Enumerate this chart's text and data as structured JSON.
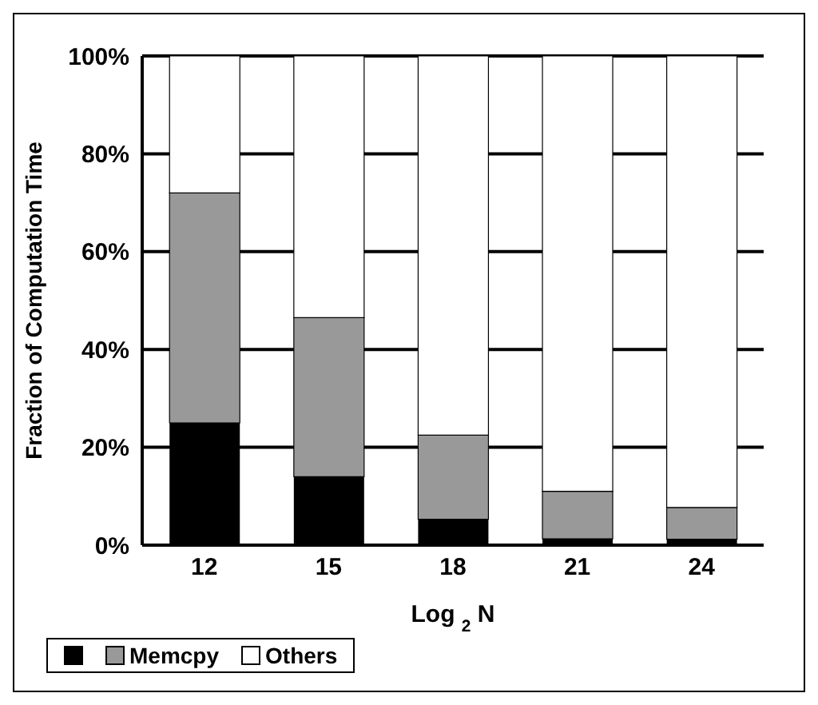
{
  "chart_data": {
    "type": "bar",
    "stacked": true,
    "xlabel": "Log $_{2}$ N",
    "ylabel": "Fraction of Computation Time",
    "categories": [
      "12",
      "15",
      "18",
      "21",
      "24"
    ],
    "series": [
      {
        "color": "#000000",
        "values": [
          25,
          14,
          5.3,
          1.3,
          1.2
        ]
      },
      {
        "name": "Memcpy",
        "color": "#999999",
        "values": [
          47,
          32.5,
          17.2,
          9.7,
          6.5
        ]
      },
      {
        "name": "Others",
        "color": "#ffffff",
        "values": [
          28,
          53.5,
          77.5,
          89,
          92.3
        ]
      }
    ],
    "ylim": [
      0,
      100
    ],
    "yticks": [
      {
        "value": 0,
        "label": "0%"
      },
      {
        "value": 20,
        "label": "20%"
      },
      {
        "value": 40,
        "label": "40%"
      },
      {
        "value": 60,
        "label": "60%"
      },
      {
        "value": 80,
        "label": "80%"
      },
      {
        "value": 100,
        "label": "100%"
      }
    ],
    "grid": "y",
    "legend": "bottom"
  }
}
